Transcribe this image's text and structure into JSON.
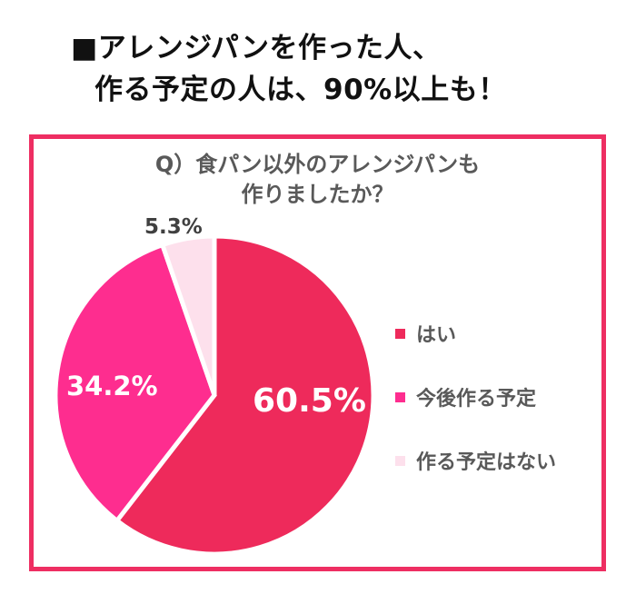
{
  "headline": {
    "bullet": "■",
    "line1": "アレンジパンを作った人、",
    "line2": "作る予定の人は、90%以上も！"
  },
  "colors": {
    "frame_border": "#ee2e62",
    "yes": "#ee2a5b",
    "plan": "#fe2d8f",
    "no": "#fde0ec"
  },
  "chart_data": {
    "type": "pie",
    "title": "Q）食パン以外のアレンジパンも作りましたか？",
    "categories": [
      "はい",
      "今後作る予定",
      "作る予定はない"
    ],
    "values": [
      60.5,
      34.2,
      5.3
    ],
    "value_labels": [
      "60.5%",
      "34.2%",
      "5.3%"
    ],
    "colors": [
      "#ee2a5b",
      "#fe2d8f",
      "#fde0ec"
    ],
    "start_angle": "12 o'clock",
    "direction": "clockwise",
    "legend_position": "right"
  },
  "question": {
    "line1": "Q）食パン以外のアレンジパンも",
    "line2": "作りましたか？"
  },
  "labels": {
    "yes": "60.5%",
    "plan": "34.2%",
    "no": "5.3%"
  },
  "legend": [
    {
      "label": "はい",
      "color": "#ee2a5b"
    },
    {
      "label": "今後作る予定",
      "color": "#fe2d8f"
    },
    {
      "label": "作る予定はない",
      "color": "#fde0ec"
    }
  ]
}
